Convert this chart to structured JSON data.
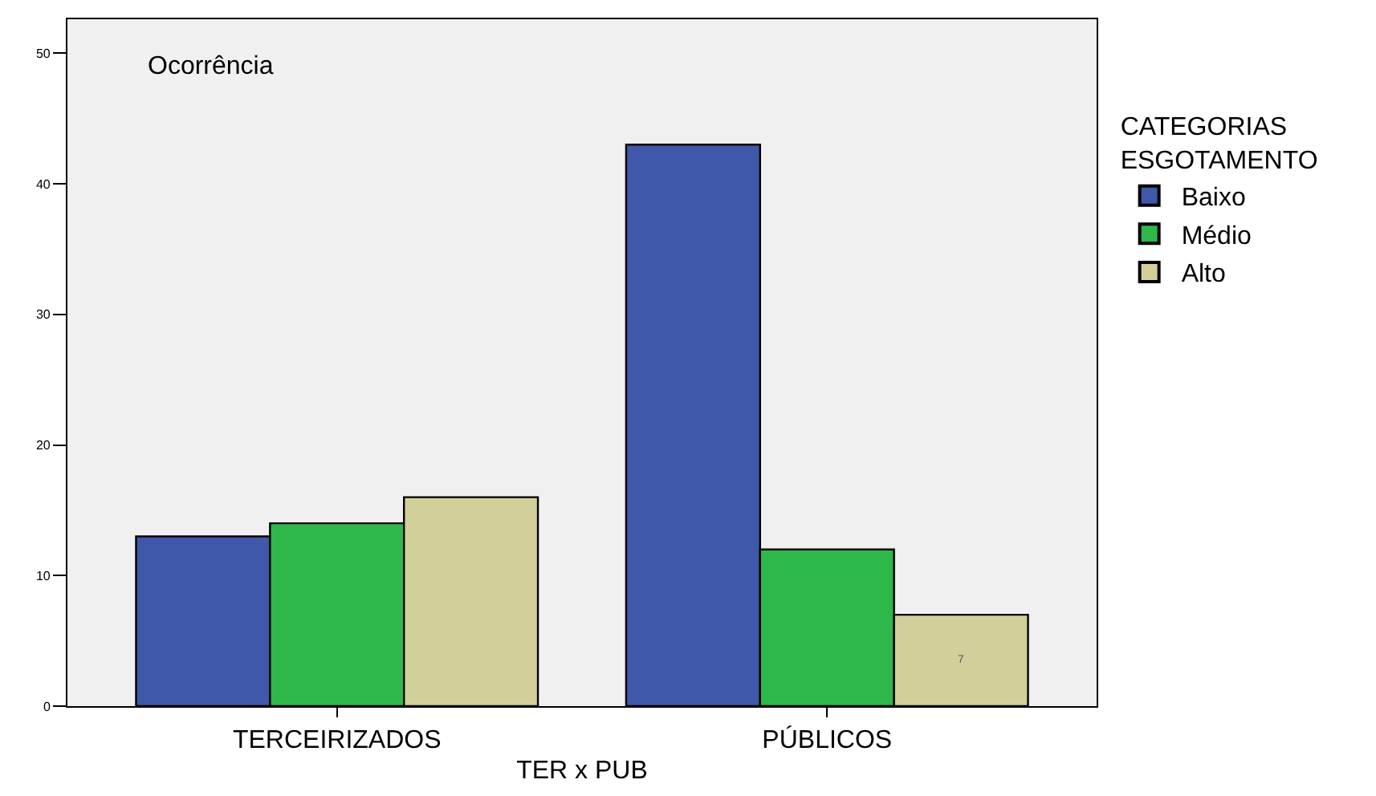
{
  "chart_data": {
    "type": "bar",
    "ylabel": "Ocorrência",
    "xlabel": "TER x PUB",
    "legend_title": "CATEGORIAS\nESGOTAMENTO",
    "categories": [
      "TERCEIRIZADOS",
      "PÚBLICOS"
    ],
    "series": [
      {
        "name": "Baixo",
        "color": "#3f58a9",
        "values": [
          13,
          43
        ]
      },
      {
        "name": "Médio",
        "color": "#2fb84a",
        "values": [
          14,
          12
        ]
      },
      {
        "name": "Alto",
        "color": "#d3cf9a",
        "values": [
          16,
          7
        ],
        "value_labels": [
          null,
          "7"
        ]
      }
    ],
    "ylim": [
      0,
      52.6
    ],
    "yticks": [
      0,
      10,
      20,
      30,
      40,
      50
    ],
    "grid": false,
    "legend": "right"
  }
}
